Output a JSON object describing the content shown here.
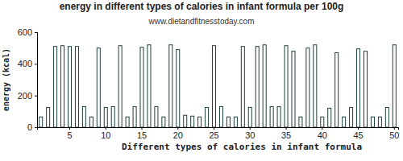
{
  "chart_data": {
    "type": "bar",
    "title": "energy in different types of calories in infant formula per 100g",
    "subtitle": "www.dietandfitnesstoday.com",
    "x_label": "Different types of calories in infant formula",
    "y_label": "energy (kcal)",
    "categories": [
      null,
      null,
      null,
      null,
      "5",
      null,
      null,
      null,
      null,
      "10",
      null,
      null,
      null,
      null,
      "15",
      null,
      null,
      null,
      null,
      "20",
      null,
      null,
      null,
      null,
      "25",
      null,
      null,
      null,
      null,
      "30",
      null,
      null,
      null,
      null,
      "35",
      null,
      null,
      null,
      null,
      "40",
      null,
      null,
      null,
      null,
      "45",
      null,
      null,
      null,
      null,
      "50"
    ],
    "values": [
      65,
      125,
      510,
      515,
      510,
      510,
      130,
      65,
      500,
      125,
      130,
      515,
      65,
      130,
      505,
      520,
      130,
      65,
      520,
      490,
      75,
      70,
      65,
      125,
      515,
      130,
      65,
      65,
      510,
      125,
      510,
      520,
      130,
      130,
      515,
      480,
      65,
      500,
      520,
      65,
      120,
      470,
      65,
      125,
      495,
      480,
      65,
      65,
      125,
      520
    ],
    "color": "#1f3f3f",
    "ylim": [
      0,
      600
    ],
    "yticks": [
      0,
      200,
      400,
      600
    ],
    "grid": false
  }
}
